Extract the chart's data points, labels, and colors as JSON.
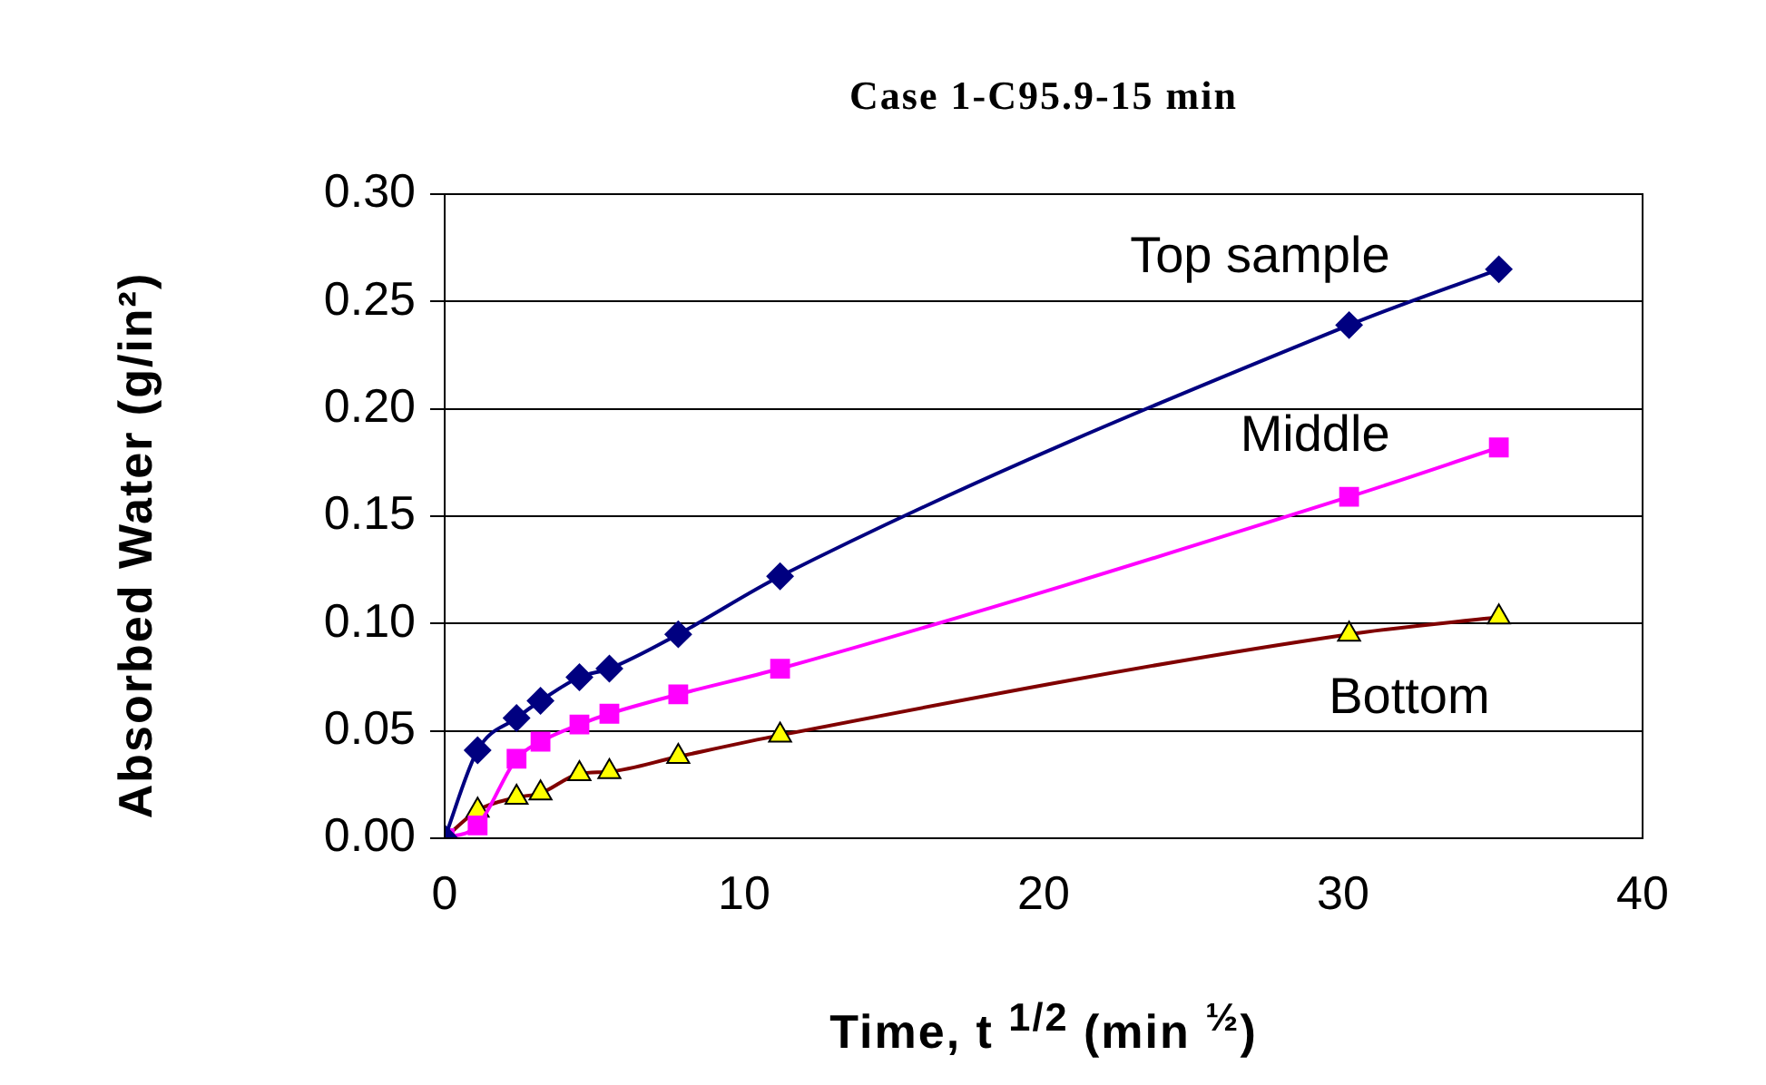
{
  "chart_data": {
    "type": "line",
    "title": "Case 1-C95.9-15 min",
    "xlabel": "Time, t $^{1/2}$ (min $^{½}$)",
    "ylabel": "Absorbed Water (g/in²)",
    "xlim": [
      0,
      40
    ],
    "xticks": [
      0,
      10,
      20,
      30,
      40
    ],
    "ylim": [
      0,
      0.3
    ],
    "yticks": [
      {
        "value": 0,
        "label": "0.00"
      },
      {
        "value": 0.05,
        "label": "0.05"
      },
      {
        "value": 0.1,
        "label": "0.10"
      },
      {
        "value": 0.15,
        "label": "0.15"
      },
      {
        "value": 0.2,
        "label": "0.20"
      },
      {
        "value": 0.25,
        "label": "0.25"
      },
      {
        "value": 0.3,
        "label": "0.30"
      }
    ],
    "grid": "y",
    "legend": false,
    "x": [
      0,
      1.1,
      2.4,
      3.2,
      4.5,
      5.5,
      7.8,
      11.2,
      30.2,
      35.2
    ],
    "series": [
      {
        "name": "Top sample",
        "color": "#000080",
        "marker": "diamond",
        "values": [
          0,
          0.041,
          0.056,
          0.064,
          0.075,
          0.079,
          0.095,
          0.122,
          0.239,
          0.265
        ]
      },
      {
        "name": "Middle",
        "color": "#ff00ff",
        "marker": "square",
        "values": [
          0,
          0.006,
          0.037,
          0.045,
          0.053,
          0.058,
          0.067,
          0.079,
          0.159,
          0.182
        ]
      },
      {
        "name": "Bottom",
        "color": "#800000",
        "marker": "triangle",
        "values": [
          0,
          0.013,
          0.019,
          0.021,
          0.03,
          0.031,
          0.038,
          0.048,
          0.095,
          0.103
        ]
      }
    ]
  }
}
